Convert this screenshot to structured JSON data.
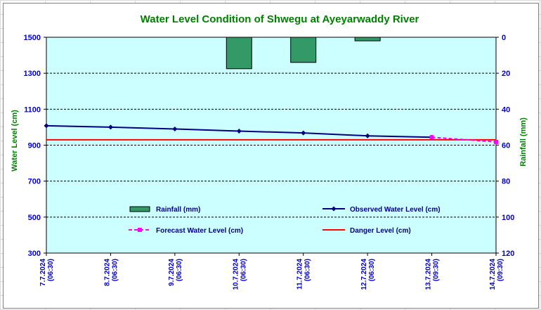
{
  "chart_data": {
    "type": "line",
    "title": "Water Level Condition of Shwegu at Ayeyarwaddy River",
    "ylabel": "Water Level (cm)",
    "y2label": "Rainfall (mm)",
    "ylim": [
      300,
      1500
    ],
    "y2lim": [
      0,
      120
    ],
    "y2_inverted": true,
    "yticks": [
      300,
      500,
      700,
      900,
      1100,
      1300,
      1500
    ],
    "y2ticks": [
      0,
      20,
      40,
      60,
      80,
      100,
      120
    ],
    "grid": "horizontal dashed",
    "categories": [
      [
        "7.7.2024",
        "(06:30)"
      ],
      [
        "8.7.2024",
        "(06:30)"
      ],
      [
        "9.7.2024",
        "(06:30)"
      ],
      [
        "10.7.2024",
        "(06:30)"
      ],
      [
        "11.7.2024",
        "(06:30)"
      ],
      [
        "12.7.2024",
        "(06:30)"
      ],
      [
        "13.7.2024",
        "(09:30)"
      ],
      [
        "14.7.2024",
        "(09:30)"
      ]
    ],
    "series": [
      {
        "name": "Rainfall (mm)",
        "kind": "bar",
        "axis": "right",
        "color": "#339966",
        "values": [
          0,
          0,
          0,
          17.5,
          14,
          2,
          0,
          0
        ]
      },
      {
        "name": "Observed Water Level (cm)",
        "kind": "line",
        "axis": "left",
        "color": "#000080",
        "marker": "diamond",
        "values": [
          1008,
          1000,
          990,
          978,
          968,
          952,
          944,
          null
        ]
      },
      {
        "name": "Forecast Water Level (cm)",
        "kind": "line",
        "axis": "left",
        "color": "#ff00ff",
        "dashed": true,
        "marker": "square",
        "values": [
          null,
          null,
          null,
          null,
          null,
          null,
          944,
          918
        ]
      },
      {
        "name": "Danger Level (cm)",
        "kind": "line",
        "axis": "left",
        "color": "#ff0000",
        "values": [
          930,
          930,
          930,
          930,
          930,
          930,
          930,
          930
        ]
      }
    ],
    "legend": "inside lower center, two columns"
  }
}
